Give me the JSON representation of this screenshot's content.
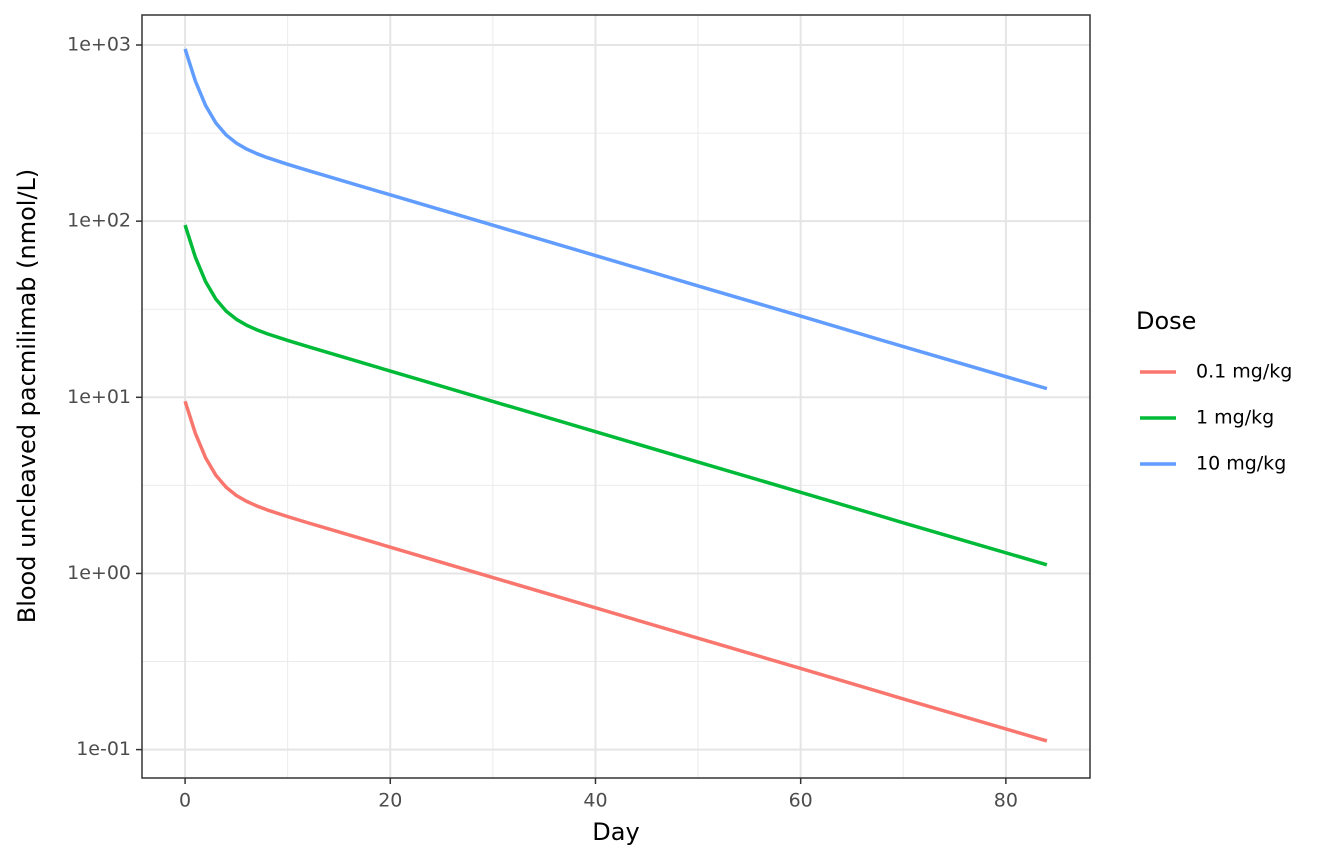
{
  "chart_data": {
    "type": "line",
    "x_label": "Day",
    "y_label": "Blood uncleaved pacmilimab (nmol/L)",
    "legend_title": "Dose",
    "legend_position": "right",
    "ylog": true,
    "grid": true,
    "x": [
      0,
      1,
      2,
      3,
      4,
      5,
      6,
      7,
      8,
      10,
      12,
      15,
      20,
      30,
      40,
      50,
      60,
      70,
      84
    ],
    "series": [
      {
        "name": "0.1 mg/kg",
        "color": "#F8766D",
        "values": [
          9.5,
          6.246,
          4.533,
          3.608,
          3.086,
          2.772,
          2.565,
          2.415,
          2.295,
          2.102,
          1.937,
          1.72,
          1.41,
          0.948,
          0.638,
          0.429,
          0.289,
          0.194,
          0.112
        ]
      },
      {
        "name": "1 mg/kg",
        "color": "#00BA38",
        "values": [
          95,
          62.46,
          45.33,
          36.08,
          30.86,
          27.72,
          25.65,
          24.15,
          22.95,
          21.02,
          19.37,
          17.2,
          14.1,
          9.48,
          6.38,
          4.29,
          2.89,
          1.94,
          1.12
        ]
      },
      {
        "name": "10 mg/kg",
        "color": "#619CFF",
        "values": [
          950,
          624.6,
          453.3,
          360.8,
          308.6,
          277.2,
          256.5,
          241.5,
          229.5,
          210.2,
          193.7,
          172,
          141,
          94.8,
          63.8,
          42.9,
          28.9,
          19.4,
          11.2
        ]
      }
    ],
    "xlim": [
      -4.2,
      88.2
    ],
    "xticks": [
      0,
      20,
      40,
      60,
      80
    ],
    "ylim": [
      0.069,
      1480
    ],
    "yticks": [
      {
        "value": 0.1,
        "label": "1e-01"
      },
      {
        "value": 1,
        "label": "1e+00"
      },
      {
        "value": 10,
        "label": "1e+01"
      },
      {
        "value": 100,
        "label": "1e+02"
      },
      {
        "value": 1000,
        "label": "1e+03"
      }
    ]
  }
}
